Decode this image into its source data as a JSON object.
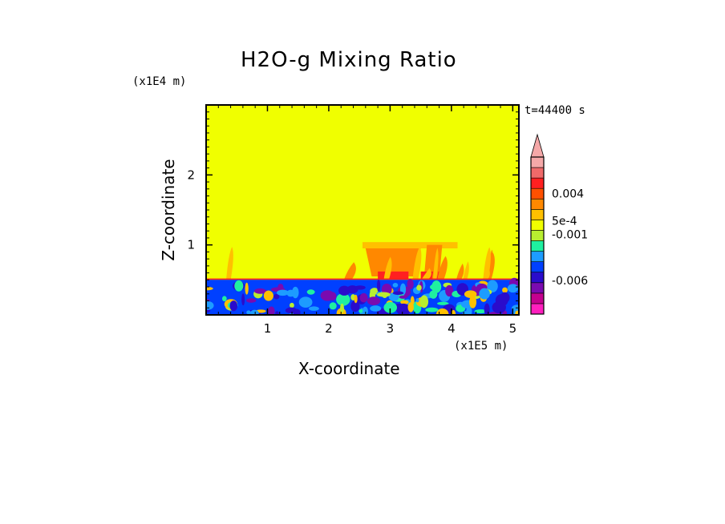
{
  "chart_data": {
    "type": "heatmap",
    "title": "H2O-g Mixing Ratio",
    "xlabel": "X-coordinate",
    "ylabel": "Z-coordinate",
    "x_unit": "(x1E5 m)",
    "z_unit": "(x1E4 m)",
    "time_label": "t=44400 s",
    "xlim": [
      0,
      5.1
    ],
    "ylim": [
      0,
      3
    ],
    "x_ticks": [
      1,
      2,
      3,
      4,
      5
    ],
    "y_ticks": [
      1,
      2
    ],
    "colorbar": {
      "colors": [
        "#ff1fbe",
        "#c5008f",
        "#7a0ab0",
        "#2a0ccc",
        "#0040ff",
        "#1d9cff",
        "#1ff0a0",
        "#b8ee30",
        "#f0ff00",
        "#ffc000",
        "#ff8800",
        "#ff5000",
        "#ff2020",
        "#ef6a6a",
        "#f5a8a8"
      ],
      "labels": [
        {
          "text": "0.004",
          "level": 11.5
        },
        {
          "text": "5e-4",
          "level": 8.9
        },
        {
          "text": "-0.001",
          "level": 7.6
        },
        {
          "text": "-0.006",
          "level": 3.2
        }
      ],
      "extend": "max"
    },
    "field_summary": [
      {
        "region": "upper domain",
        "z_range": [
          0.55,
          3
        ],
        "x_range": [
          0,
          5.1
        ],
        "color": "#f0ff00"
      },
      {
        "region": "boundary layer",
        "z_range": [
          0,
          0.5
        ],
        "x_range": [
          0,
          5.1
        ],
        "color": "#0040ff"
      },
      {
        "region": "plume",
        "z_range": [
          0.45,
          1.05
        ],
        "x_range": [
          2.5,
          4.1
        ],
        "color": "#ff8800"
      }
    ]
  }
}
